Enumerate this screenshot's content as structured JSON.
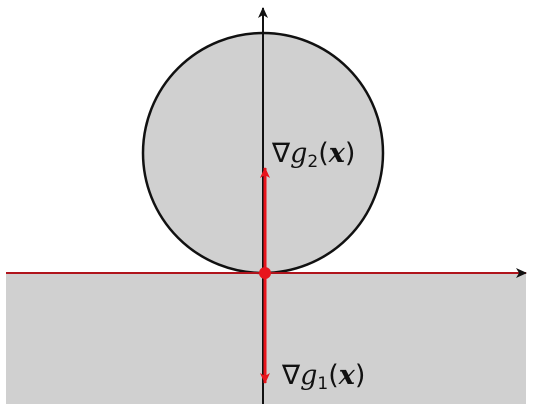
{
  "labels": {
    "grad_g2": {
      "nabla": "∇",
      "func": "g",
      "sub": "2",
      "open": "(",
      "var": "x",
      "close": ")"
    },
    "grad_g1": {
      "nabla": "∇",
      "func": "g",
      "sub": "1",
      "open": "(",
      "var": "x",
      "close": ")"
    }
  },
  "colors": {
    "region_fill": "#d0d0d0",
    "circle_fill": "#d0d0d0",
    "outline": "#111111",
    "gradient_arrows": "#e8141c",
    "tangent_line": "#b0141c",
    "axis": "#111111"
  }
}
